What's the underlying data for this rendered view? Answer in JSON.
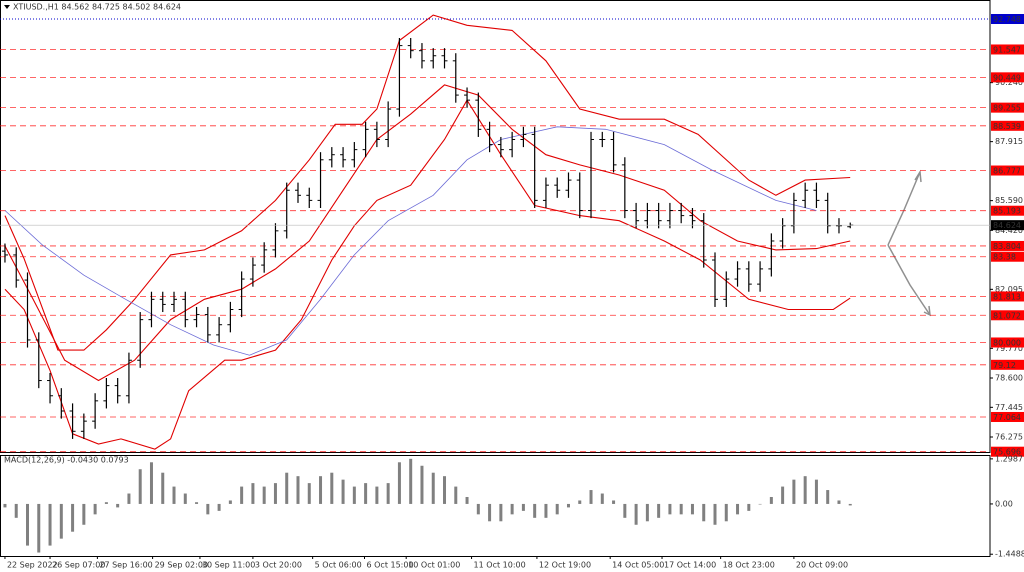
{
  "chart_data": [
    {
      "type": "candlestick",
      "title": "XTIUSD.,H1 84.562 84.725 84.502 84.624",
      "color": "#000000",
      "open": [
        83.6,
        83.45,
        82.46,
        80.1,
        78.5,
        77.9,
        77.3,
        76.5,
        76.9,
        77.7,
        78.3,
        77.9,
        79.3,
        80.9,
        81.7,
        81.5,
        81.7,
        80.9,
        81.1,
        80.3,
        80.7,
        81.3,
        82.5,
        83.05,
        83.65,
        84.4,
        86.0,
        85.8,
        85.6,
        87.2,
        87.4,
        87.2,
        87.6,
        88.4,
        88.0,
        89.2,
        91.7,
        91.5,
        91.1,
        91.3,
        91.1,
        89.75,
        89.55,
        88.4,
        87.8,
        87.6,
        88.0,
        88.2,
        85.6,
        86.2,
        86.0,
        86.4,
        85.2,
        88.0,
        88.0,
        87.0,
        85.2,
        84.8,
        85.2,
        84.8,
        85.2,
        85.0,
        84.8,
        83.25,
        81.7,
        82.5,
        82.9,
        82.3,
        82.9,
        84.0,
        84.6,
        85.6,
        86.0,
        85.6,
        84.6,
        84.562
      ],
      "high": [
        83.9,
        83.75,
        82.76,
        80.4,
        78.8,
        78.2,
        77.6,
        77.2,
        78.0,
        78.6,
        78.6,
        79.6,
        81.2,
        82.0,
        82.0,
        82.0,
        82.0,
        81.4,
        81.4,
        81.0,
        81.6,
        82.8,
        83.35,
        83.95,
        84.7,
        86.3,
        86.3,
        86.1,
        87.5,
        87.7,
        87.7,
        87.9,
        88.7,
        88.7,
        89.5,
        92.0,
        92.0,
        91.8,
        91.6,
        91.6,
        91.4,
        90.05,
        89.85,
        88.7,
        88.1,
        88.3,
        88.5,
        88.5,
        86.5,
        86.5,
        86.7,
        86.7,
        88.3,
        88.3,
        88.3,
        87.3,
        85.5,
        85.5,
        85.5,
        85.5,
        85.5,
        85.3,
        85.1,
        83.55,
        82.8,
        83.2,
        83.2,
        83.2,
        84.3,
        84.9,
        85.9,
        86.3,
        86.3,
        85.9,
        84.9,
        84.725
      ],
      "low": [
        83.15,
        82.16,
        79.8,
        78.2,
        77.6,
        77.0,
        76.2,
        76.2,
        76.6,
        77.4,
        77.6,
        77.6,
        79.0,
        80.6,
        81.2,
        81.2,
        80.6,
        80.6,
        80.0,
        80.0,
        80.4,
        81.0,
        82.2,
        82.75,
        83.35,
        84.1,
        85.5,
        85.3,
        85.3,
        86.9,
        86.9,
        86.9,
        87.3,
        87.7,
        87.7,
        88.9,
        91.2,
        90.8,
        90.8,
        90.8,
        89.45,
        89.25,
        88.1,
        87.5,
        87.3,
        87.3,
        87.7,
        85.3,
        85.3,
        85.7,
        85.7,
        84.9,
        84.9,
        87.7,
        86.7,
        84.9,
        84.5,
        84.5,
        84.5,
        84.5,
        84.7,
        84.5,
        82.95,
        81.4,
        81.4,
        82.2,
        82.0,
        82.0,
        82.6,
        83.7,
        84.3,
        85.3,
        85.3,
        84.3,
        84.3,
        84.502
      ],
      "close": [
        83.45,
        82.46,
        80.1,
        78.5,
        77.9,
        77.3,
        76.5,
        76.9,
        77.7,
        78.3,
        77.9,
        79.3,
        80.9,
        81.7,
        81.5,
        81.7,
        80.9,
        81.1,
        80.3,
        80.7,
        81.3,
        82.5,
        83.05,
        83.65,
        84.4,
        86.0,
        85.8,
        85.6,
        87.2,
        87.4,
        87.2,
        87.6,
        88.4,
        88.0,
        89.2,
        91.7,
        91.5,
        91.1,
        91.3,
        91.1,
        89.75,
        89.55,
        88.4,
        87.8,
        87.6,
        88.0,
        88.2,
        85.6,
        86.2,
        86.0,
        86.4,
        85.2,
        88.0,
        88.0,
        87.0,
        85.2,
        84.8,
        85.2,
        84.8,
        85.2,
        85.0,
        84.8,
        83.25,
        81.7,
        82.5,
        82.9,
        82.3,
        82.9,
        84.0,
        84.6,
        85.6,
        86.0,
        85.6,
        84.6,
        84.6,
        84.624
      ],
      "xlim": [
        -0.44,
        87.4
      ],
      "ylim": [
        75.684,
        93.497
      ],
      "yticks": [
        {
          "value": 90.24,
          "label": "90.240"
        },
        87.915,
        {
          "value": 85.59,
          "label": "85.590"
        },
        {
          "value": 84.42,
          "label": "84.420"
        },
        82.095,
        {
          "value": 79.77,
          "label": "79.770"
        },
        {
          "value": 78.6,
          "label": "78.600"
        },
        77.445,
        76.275
      ],
      "levels": [
        91.547,
        90.449,
        89.255,
        88.539,
        86.777,
        85.193,
        83.804,
        83.38,
        81.813,
        81.072,
        {
          "value": 80,
          "label": "80.000"
        },
        79.12,
        77.064,
        75.696
      ],
      "level_color": "#ff0000",
      "marker_line": 92.748,
      "marker_color": "#0000cc",
      "overlays": [
        {
          "color": "#e00000",
          "x": [
            0,
            1.7,
            4.7,
            7,
            9,
            11.5,
            14.7,
            17.7,
            21,
            24,
            27,
            29.3,
            31.7,
            33,
            35,
            38,
            41,
            45,
            48,
            51,
            54.5,
            58.5,
            61.5,
            66,
            68.4,
            71,
            75
          ],
          "values": [
            85.0,
            83.3,
            79.7,
            79.7,
            80.5,
            81.7,
            83.45,
            83.65,
            84.4,
            85.6,
            87.2,
            88.6,
            88.6,
            89.2,
            91.9,
            92.9,
            92.5,
            92.3,
            91.1,
            89.2,
            88.8,
            88.8,
            88.2,
            86.4,
            85.8,
            86.4,
            86.5
          ]
        },
        {
          "color": "#e00000",
          "x": [
            0,
            2.5,
            5.3,
            8.3,
            11.5,
            14.7,
            17.7,
            21,
            24,
            27,
            30,
            33,
            36,
            39,
            42,
            45,
            48,
            51,
            54.5,
            58.5,
            61.7,
            65,
            68.4,
            72,
            75
          ],
          "values": [
            83.8,
            81.7,
            79.3,
            78.5,
            79.3,
            80.9,
            81.7,
            82.1,
            82.9,
            84.0,
            86.0,
            88.0,
            89.0,
            90.15,
            89.75,
            88.4,
            87.4,
            87.0,
            86.6,
            86.0,
            84.8,
            84.0,
            83.65,
            83.7,
            84.0
          ]
        },
        {
          "color": "#e00000",
          "x": [
            0,
            1.7,
            4,
            6,
            8.3,
            10.3,
            13.3,
            14.7,
            16.3,
            19.5,
            21,
            24,
            26.3,
            29,
            31,
            33,
            36,
            39,
            41,
            44,
            47,
            51,
            54.5,
            58.5,
            61.7,
            66,
            69.5,
            73.5,
            75
          ],
          "values": [
            82.1,
            81.3,
            78.9,
            76.4,
            76.0,
            76.2,
            75.8,
            76.2,
            78.1,
            79.3,
            79.3,
            79.7,
            80.9,
            83.25,
            84.6,
            85.6,
            86.2,
            88.0,
            89.55,
            87.4,
            85.4,
            85.0,
            84.8,
            84.0,
            83.25,
            81.7,
            81.3,
            81.3,
            81.75
          ]
        },
        {
          "color": "#6b6bd6",
          "x": [
            0,
            3.3,
            7,
            10.7,
            14.7,
            18.5,
            21.7,
            25,
            28,
            31,
            34,
            38,
            41,
            44,
            49,
            53.3,
            58.5,
            62.7,
            68.4,
            72
          ],
          "values": [
            85.2,
            83.85,
            82.65,
            81.7,
            80.7,
            79.9,
            79.5,
            80.1,
            81.7,
            83.45,
            84.8,
            85.8,
            87.2,
            88.0,
            88.5,
            88.4,
            87.8,
            86.8,
            85.6,
            85.2
          ]
        }
      ]
    },
    {
      "type": "bar",
      "title": "MACD(12,26,9) -0.0430 0.0793",
      "color": "#808080",
      "values": [
        -0.1,
        -0.4,
        -1.2,
        -1.4,
        -1.2,
        -1.0,
        -0.8,
        -0.6,
        -0.3,
        0.05,
        -0.1,
        0.3,
        1.0,
        1.2,
        0.9,
        0.5,
        0.3,
        0.05,
        -0.3,
        -0.2,
        0.1,
        0.5,
        0.6,
        0.5,
        0.6,
        0.9,
        0.8,
        0.6,
        0.8,
        0.9,
        0.7,
        0.5,
        0.6,
        0.5,
        0.6,
        1.2,
        1.3,
        1.1,
        0.9,
        0.8,
        0.5,
        0.2,
        -0.3,
        -0.5,
        -0.5,
        -0.3,
        -0.2,
        -0.4,
        -0.4,
        -0.3,
        -0.1,
        0.1,
        0.4,
        0.3,
        0.1,
        -0.4,
        -0.6,
        -0.5,
        -0.4,
        -0.3,
        -0.3,
        -0.3,
        -0.5,
        -0.6,
        -0.5,
        -0.3,
        -0.2,
        0.0,
        0.2,
        0.5,
        0.7,
        0.8,
        0.7,
        0.4,
        0.1,
        -0.043
      ],
      "xlim": [
        -0.44,
        87.4
      ],
      "ylim": [
        -1.5,
        1.41
      ],
      "yticks": [
        1.2987,
        {
          "value": 0,
          "label": "0.00"
        },
        -1.4488
      ],
      "xticks": [
        {
          "value": 0,
          "label": "22 Sep 2022"
        },
        {
          "value": 4,
          "label": "26 Sep 07:00"
        },
        {
          "value": 8.2,
          "label": "27 Sep 16:00"
        },
        {
          "value": 13.1,
          "label": "29 Sep 02:00"
        },
        {
          "value": 17.3,
          "label": "30 Sep 11:00"
        },
        {
          "value": 22,
          "label": "3 Oct 20:00"
        },
        {
          "value": 27.3,
          "label": "5 Oct 06:00"
        },
        {
          "value": 31.9,
          "label": "6 Oct 15:00"
        },
        {
          "value": 35.6,
          "label": "10 Oct 01:00"
        },
        {
          "value": 41.4,
          "label": "11 Oct 10:00"
        },
        {
          "value": 47.2,
          "label": "12 Oct 19:00"
        },
        {
          "value": 53.7,
          "label": "14 Oct 05:00"
        },
        {
          "value": 58.3,
          "label": "17 Oct 14:00"
        },
        {
          "value": 63.5,
          "label": "18 Oct 23:00"
        },
        {
          "value": 70,
          "label": "20 Oct 09:00"
        }
      ]
    }
  ]
}
